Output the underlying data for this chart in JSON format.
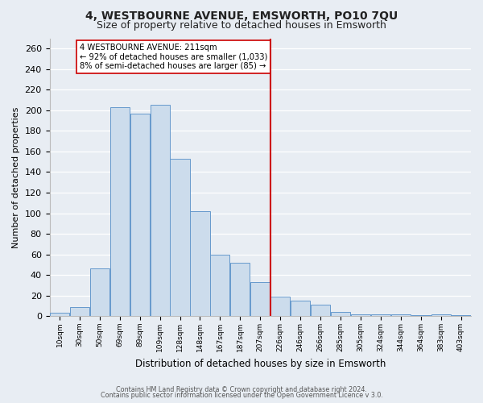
{
  "title": "4, WESTBOURNE AVENUE, EMSWORTH, PO10 7QU",
  "subtitle": "Size of property relative to detached houses in Emsworth",
  "xlabel": "Distribution of detached houses by size in Emsworth",
  "ylabel": "Number of detached properties",
  "footer_lines": [
    "Contains HM Land Registry data © Crown copyright and database right 2024.",
    "Contains public sector information licensed under the Open Government Licence v 3.0."
  ],
  "bar_labels": [
    "10sqm",
    "30sqm",
    "50sqm",
    "69sqm",
    "89sqm",
    "109sqm",
    "128sqm",
    "148sqm",
    "167sqm",
    "187sqm",
    "207sqm",
    "226sqm",
    "246sqm",
    "266sqm",
    "285sqm",
    "305sqm",
    "324sqm",
    "344sqm",
    "364sqm",
    "383sqm",
    "403sqm"
  ],
  "bar_heights": [
    3,
    9,
    46,
    203,
    197,
    205,
    153,
    102,
    60,
    52,
    33,
    19,
    15,
    11,
    4,
    2,
    2,
    2,
    1,
    2,
    1
  ],
  "bar_color": "#ccdcec",
  "bar_edge_color": "#6699cc",
  "vline_color": "#cc0000",
  "annotation_text": "4 WESTBOURNE AVENUE: 211sqm\n← 92% of detached houses are smaller (1,033)\n8% of semi-detached houses are larger (85) →",
  "annotation_box_color": "#ffffff",
  "annotation_box_edge_color": "#cc0000",
  "ylim": [
    0,
    270
  ],
  "yticks": [
    0,
    20,
    40,
    60,
    80,
    100,
    120,
    140,
    160,
    180,
    200,
    220,
    240,
    260
  ],
  "bg_color": "#e8edf3",
  "grid_color": "#d0d8e0",
  "title_fontsize": 10,
  "subtitle_fontsize": 9
}
